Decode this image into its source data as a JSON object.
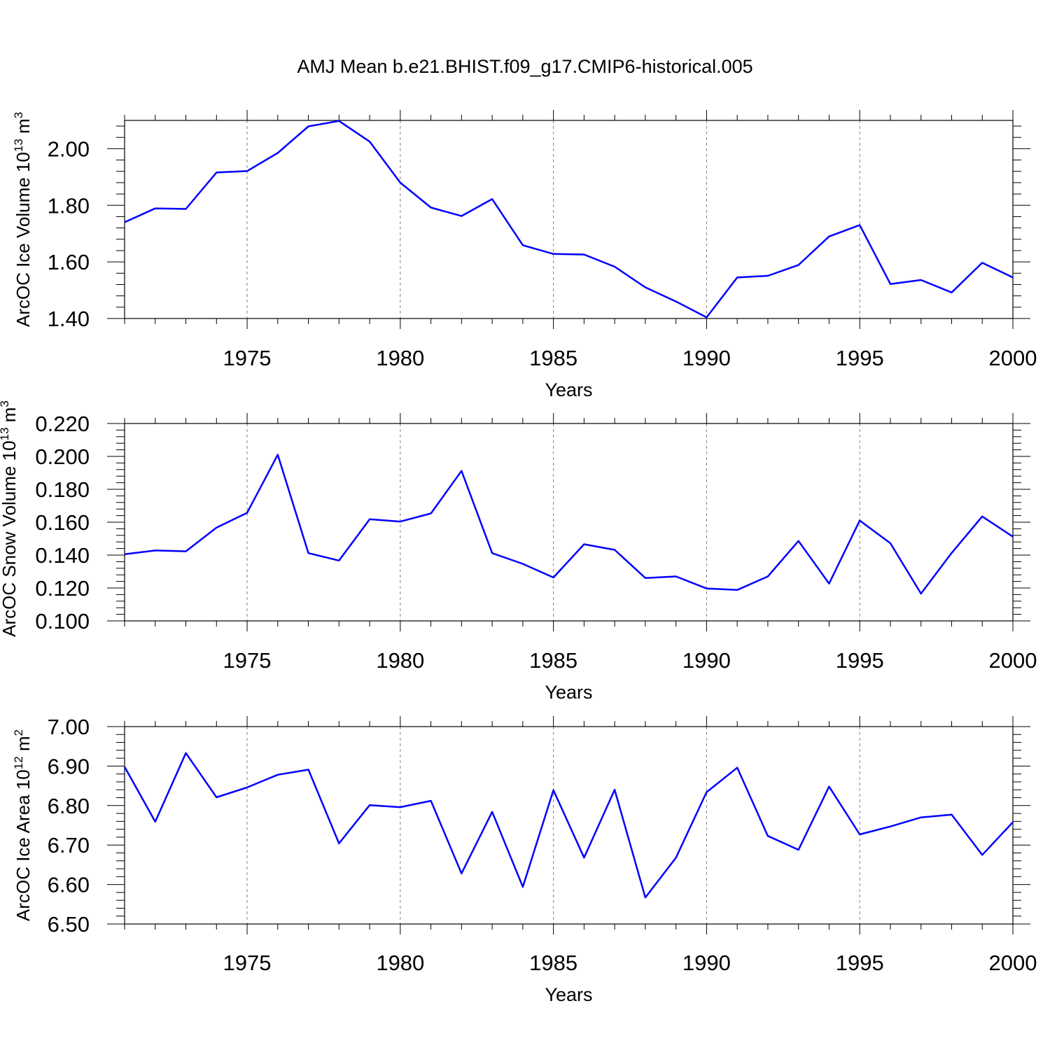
{
  "title": "AMJ Mean b.e21.BHIST.f09_g17.CMIP6-historical.005",
  "colors": {
    "series": "#0000ff",
    "axis": "#000000",
    "grid": "#808080"
  },
  "chart_data": [
    {
      "type": "line",
      "ylabel_prefix": "ArcOC Ice Volume 10",
      "ylabel_exp": "13",
      "ylabel_unit": "m",
      "ylabel_unit_exp": "3",
      "xlabel": "Years",
      "xlim": [
        1971,
        2000
      ],
      "ylim": [
        1.4,
        2.1
      ],
      "xticks": [
        "1975",
        "1980",
        "1985",
        "1990",
        "1995",
        "2000"
      ],
      "yticks": [
        "1.40",
        "1.60",
        "1.80",
        "2.00"
      ],
      "x": [
        1971,
        1972,
        1973,
        1974,
        1975,
        1976,
        1977,
        1978,
        1979,
        1980,
        1981,
        1982,
        1983,
        1984,
        1985,
        1986,
        1987,
        1988,
        1989,
        1990,
        1991,
        1992,
        1993,
        1994,
        1995,
        1996,
        1997,
        1998,
        1999,
        2000
      ],
      "values": [
        1.74,
        1.789,
        1.787,
        1.916,
        1.921,
        1.985,
        2.079,
        2.098,
        2.025,
        1.88,
        1.792,
        1.762,
        1.822,
        1.659,
        1.628,
        1.626,
        1.583,
        1.51,
        1.46,
        1.404,
        1.545,
        1.551,
        1.589,
        1.69,
        1.73,
        1.522,
        1.536,
        1.492,
        1.597,
        1.545
      ]
    },
    {
      "type": "line",
      "ylabel_prefix": "ArcOC Snow Volume 10",
      "ylabel_exp": "13",
      "ylabel_unit": "m",
      "ylabel_unit_exp": "3",
      "xlabel": "Years",
      "xlim": [
        1971,
        2000
      ],
      "ylim": [
        0.1,
        0.22
      ],
      "xticks": [
        "1975",
        "1980",
        "1985",
        "1990",
        "1995",
        "2000"
      ],
      "yticks": [
        "0.100",
        "0.120",
        "0.140",
        "0.160",
        "0.180",
        "0.200",
        "0.220"
      ],
      "x": [
        1971,
        1972,
        1973,
        1974,
        1975,
        1976,
        1977,
        1978,
        1979,
        1980,
        1981,
        1982,
        1983,
        1984,
        1985,
        1986,
        1987,
        1988,
        1989,
        1990,
        1991,
        1992,
        1993,
        1994,
        1995,
        1996,
        1997,
        1998,
        1999,
        2000
      ],
      "values": [
        0.1405,
        0.1428,
        0.1423,
        0.1567,
        0.1657,
        0.201,
        0.1412,
        0.1367,
        0.1618,
        0.1604,
        0.1653,
        0.1912,
        0.1412,
        0.1347,
        0.1264,
        0.1466,
        0.1432,
        0.1261,
        0.127,
        0.1197,
        0.1188,
        0.127,
        0.1486,
        0.1227,
        0.161,
        0.1472,
        0.1166,
        0.1413,
        0.1635,
        0.1512
      ]
    },
    {
      "type": "line",
      "ylabel_prefix": "ArcOC Ice Area 10",
      "ylabel_exp": "12",
      "ylabel_unit": "m",
      "ylabel_unit_exp": "2",
      "xlabel": "Years",
      "xlim": [
        1971,
        2000
      ],
      "ylim": [
        6.5,
        7.0
      ],
      "xticks": [
        "1975",
        "1980",
        "1985",
        "1990",
        "1995",
        "2000"
      ],
      "yticks": [
        "6.50",
        "6.60",
        "6.70",
        "6.80",
        "6.90",
        "7.00"
      ],
      "x": [
        1971,
        1972,
        1973,
        1974,
        1975,
        1976,
        1977,
        1978,
        1979,
        1980,
        1981,
        1982,
        1983,
        1984,
        1985,
        1986,
        1987,
        1988,
        1989,
        1990,
        1991,
        1992,
        1993,
        1994,
        1995,
        1996,
        1997,
        1998,
        1999,
        2000
      ],
      "values": [
        6.898,
        6.759,
        6.933,
        6.821,
        6.846,
        6.878,
        6.891,
        6.704,
        6.801,
        6.796,
        6.812,
        6.628,
        6.784,
        6.594,
        6.839,
        6.668,
        6.84,
        6.567,
        6.668,
        6.834,
        6.896,
        6.723,
        6.688,
        6.848,
        6.727,
        6.747,
        6.77,
        6.777,
        6.675,
        6.758
      ]
    }
  ]
}
